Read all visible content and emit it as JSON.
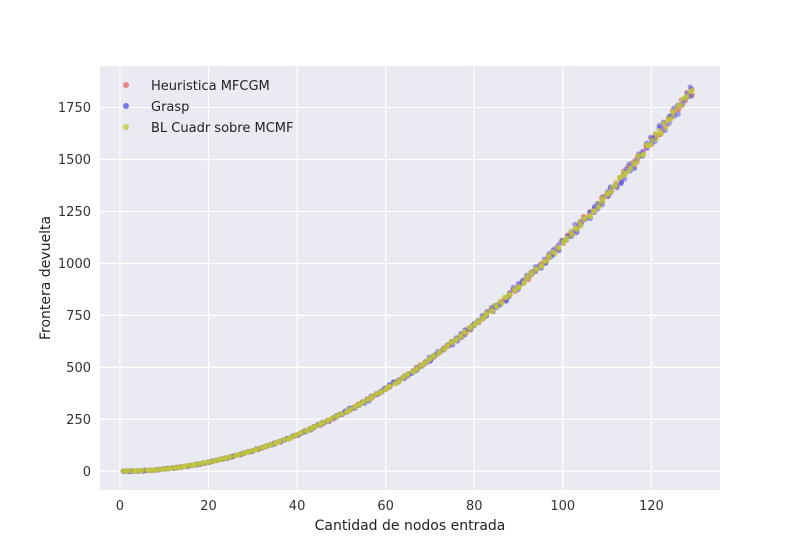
{
  "chart_data": {
    "type": "scatter",
    "xlabel": "Cantidad de nodos entrada",
    "ylabel": "Frontera devuelta",
    "xlim": [
      -4.5,
      135.5
    ],
    "ylim": [
      -90,
      1950
    ],
    "xticks": [
      0,
      20,
      40,
      60,
      80,
      100,
      120
    ],
    "yticks": [
      0,
      250,
      500,
      750,
      1000,
      1250,
      1500,
      1750
    ],
    "grid": true,
    "legend_position": "top-left",
    "model": "y ≈ 0.11·x²",
    "x_range": [
      1,
      129
    ],
    "series": [
      {
        "name": "Heuristica MFCGM",
        "color": "#e36b6b",
        "points_per_x": 3,
        "spread": 0.012
      },
      {
        "name": "Grasp",
        "color": "#5a5ae6",
        "points_per_x": 3,
        "spread": 0.018
      },
      {
        "name": "BL Cuadr sobre MCMF",
        "color": "#c3c83b",
        "points_per_x": 3,
        "spread": 0.01
      }
    ]
  }
}
